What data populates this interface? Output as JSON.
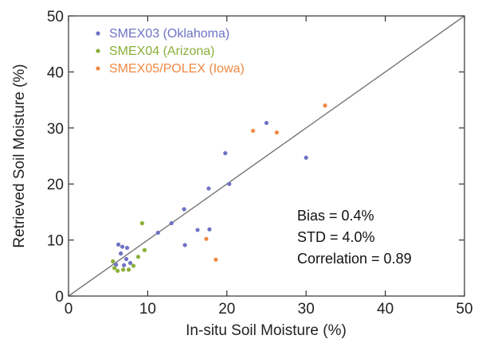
{
  "chart_data": {
    "type": "scatter",
    "title": "",
    "xlabel": "In-situ Soil Moisture (%)",
    "ylabel": "Retrieved Soil Moisture (%)",
    "xlim": [
      0,
      50
    ],
    "ylim": [
      0,
      50
    ],
    "xticks": [
      "0",
      "10",
      "20",
      "30",
      "40",
      "50"
    ],
    "yticks": [
      "0",
      "10",
      "20",
      "30",
      "40",
      "50"
    ],
    "grid": false,
    "legend_position": "top-left",
    "one_to_one_line": true,
    "series": [
      {
        "name": "SMEX03 (Oklahoma)",
        "color": "#6f72c4",
        "points": [
          [
            6.3,
            9.2
          ],
          [
            6.8,
            8.8
          ],
          [
            7.4,
            8.6
          ],
          [
            6.6,
            7.6
          ],
          [
            7.3,
            6.6
          ],
          [
            7.8,
            5.9
          ],
          [
            7.0,
            5.5
          ],
          [
            6.0,
            5.6
          ],
          [
            11.3,
            11.3
          ],
          [
            13.0,
            13.0
          ],
          [
            14.6,
            15.5
          ],
          [
            14.7,
            9.1
          ],
          [
            16.3,
            11.8
          ],
          [
            17.8,
            11.9
          ],
          [
            17.7,
            19.2
          ],
          [
            20.3,
            20.0
          ],
          [
            19.8,
            25.5
          ],
          [
            25.0,
            30.9
          ],
          [
            30.0,
            24.7
          ]
        ]
      },
      {
        "name": "SMEX04 (Arizona)",
        "color": "#8aaf3a",
        "points": [
          [
            5.6,
            6.2
          ],
          [
            5.8,
            5.0
          ],
          [
            6.2,
            4.5
          ],
          [
            6.9,
            4.7
          ],
          [
            7.6,
            4.7
          ],
          [
            8.2,
            5.4
          ],
          [
            8.8,
            7.0
          ],
          [
            9.6,
            8.2
          ],
          [
            9.3,
            13.0
          ]
        ]
      },
      {
        "name": "SMEX05/POLEX (Iowa)",
        "color": "#f08a45",
        "points": [
          [
            17.4,
            10.2
          ],
          [
            18.6,
            6.5
          ],
          [
            23.3,
            29.5
          ],
          [
            26.3,
            29.2
          ],
          [
            32.4,
            34.0
          ]
        ]
      }
    ],
    "annotations": [
      "Bias = 0.4%",
      "STD = 4.0%",
      "Correlation = 0.89"
    ]
  }
}
